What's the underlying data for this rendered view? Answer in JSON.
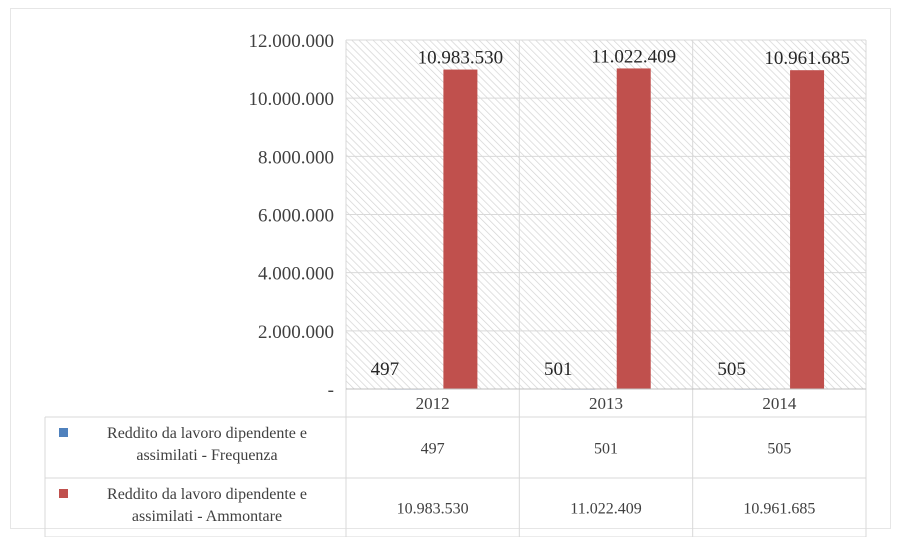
{
  "chart_data": {
    "type": "bar",
    "categories": [
      "2012",
      "2013",
      "2014"
    ],
    "series": [
      {
        "name": "Reddito da lavoro dipendente e assimilati - Frequenza",
        "name_lines": [
          "Reddito da lavoro dipendente e",
          "assimilati - Frequenza"
        ],
        "values": [
          497,
          501,
          505
        ],
        "value_labels": [
          "497",
          "501",
          "505"
        ],
        "color": "#4F81BD"
      },
      {
        "name": "Reddito da lavoro dipendente e assimilati - Ammontare",
        "name_lines": [
          "Reddito da lavoro dipendente e",
          "assimilati - Ammontare"
        ],
        "values": [
          10983530,
          11022409,
          10961685
        ],
        "value_labels": [
          "10.983.530",
          "11.022.409",
          "10.961.685"
        ],
        "color": "#C0504D"
      }
    ],
    "ylim": [
      0,
      12000000
    ],
    "yticks": [
      0,
      2000000,
      4000000,
      6000000,
      8000000,
      10000000,
      12000000
    ],
    "ytick_labels": [
      "-",
      "2.000.000",
      "4.000.000",
      "6.000.000",
      "8.000.000",
      "10.000.000",
      "12.000.000"
    ],
    "title": "",
    "xlabel": "",
    "ylabel": "",
    "grid": true,
    "plot_area_pattern": "diagonal-hatch",
    "legend": "data-table",
    "data_table": true
  }
}
